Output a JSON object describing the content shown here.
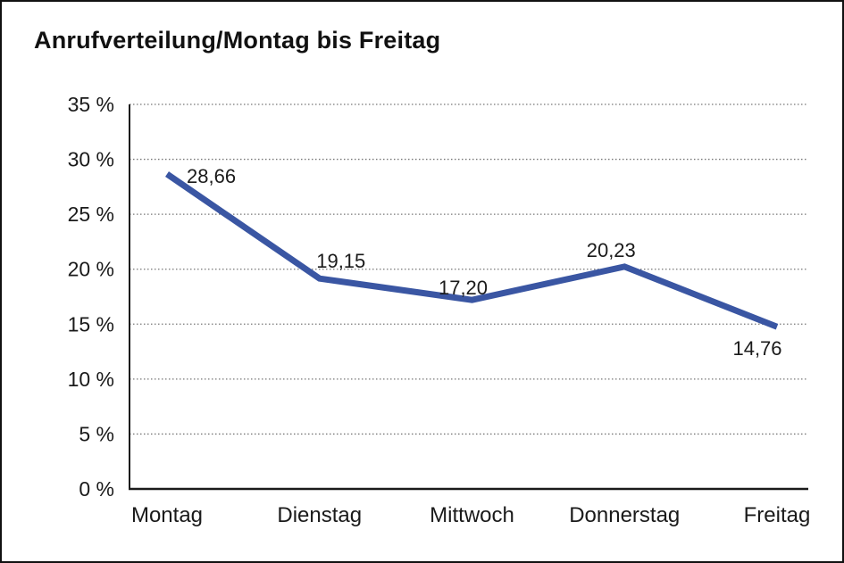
{
  "window": {
    "background": "#ffffff",
    "border_color": "#111111"
  },
  "chart_data": {
    "type": "line",
    "title": "Anrufverteilung/Montag bis Freitag",
    "categories": [
      "Montag",
      "Dienstag",
      "Mittwoch",
      "Donnerstag",
      "Freitag"
    ],
    "series": [
      {
        "name": "Anrufverteilung",
        "values": [
          28.66,
          19.15,
          17.2,
          20.23,
          14.76
        ]
      }
    ],
    "point_labels": [
      "28,66",
      "19,15",
      "17,20",
      "20,23",
      "14,76"
    ],
    "xlabel": "",
    "ylabel": "",
    "ylim": [
      0,
      35
    ],
    "y_ticks": [
      0,
      5,
      10,
      15,
      20,
      25,
      30,
      35
    ],
    "y_tick_labels": [
      "0 %",
      "5 %",
      "10 %",
      "15 %",
      "20 %",
      "25 %",
      "30 %",
      "35 %"
    ],
    "grid": "horizontal-dotted",
    "legend_position": "none",
    "line_color": "#3A56A3",
    "grid_color": "#777777",
    "axis_color": "#1a1a1a",
    "text_color": "#1a1a1a"
  }
}
